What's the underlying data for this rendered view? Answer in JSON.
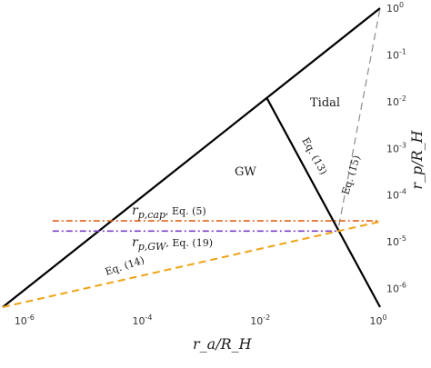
{
  "chart_data": {
    "type": "line",
    "title": "",
    "xlabel": "r_a/R_H",
    "ylabel": "r_p/R_H",
    "xscale": "log",
    "yscale": "log",
    "xlim": [
      4e-07,
      1
    ],
    "ylim": [
      4e-07,
      1
    ],
    "x_ticks": [
      {
        "value": 1e-06,
        "base": "10",
        "exp": "-6"
      },
      {
        "value": 0.0001,
        "base": "10",
        "exp": "-4"
      },
      {
        "value": 0.01,
        "base": "10",
        "exp": "-2"
      },
      {
        "value": 1,
        "base": "10",
        "exp": "0"
      }
    ],
    "y_ticks": [
      {
        "value": 1e-06,
        "base": "10",
        "exp": "-6"
      },
      {
        "value": 1e-05,
        "base": "10",
        "exp": "-5"
      },
      {
        "value": 0.0001,
        "base": "10",
        "exp": "-4"
      },
      {
        "value": 0.001,
        "base": "10",
        "exp": "-3"
      },
      {
        "value": 0.01,
        "base": "10",
        "exp": "-2"
      },
      {
        "value": 0.1,
        "base": "10",
        "exp": "-1"
      },
      {
        "value": 1,
        "base": "10",
        "exp": "0"
      }
    ],
    "regions": [
      "GW",
      "Tidal"
    ],
    "series": [
      {
        "style": "solid",
        "color": "#000000",
        "x": [
          4e-07,
          1
        ],
        "y": [
          4e-07,
          1
        ]
      },
      {
        "style": "solid",
        "color": "#000000",
        "x": [
          0.012,
          1
        ],
        "y": [
          0.012,
          4e-07
        ]
      },
      {
        "name": "Eq. (14)",
        "style": "dashed",
        "color": "#f0a418",
        "x": [
          4e-07,
          1
        ],
        "y": [
          4e-07,
          2.7e-05
        ]
      },
      {
        "name": "Eq. (15)",
        "style": "dashed",
        "color": "#8c8c8c",
        "x": [
          0.2,
          1
        ],
        "y": [
          2.2e-05,
          1
        ]
      },
      {
        "name": "Eq. (5)",
        "style": "dashdot",
        "color": "#e0601a",
        "x": [
          2.8e-06,
          1
        ],
        "y": [
          2.8e-05,
          2.8e-05
        ]
      },
      {
        "name": "Eq. (19)",
        "style": "dashdot",
        "color": "#7a3fc8",
        "x": [
          2.8e-06,
          0.2
        ],
        "y": [
          1.7e-05,
          1.7e-05
        ]
      }
    ],
    "annotations": {
      "eq13": "Eq. (13)",
      "eq14": "Eq. (14)",
      "eq15": "Eq. (15)",
      "rpcap_sym": "r",
      "rpcap_sub": "p,cap",
      "rpcap_eq": "Eq. (5)",
      "rpgw_sym": "r",
      "rpgw_sub": "p,GW",
      "rpgw_eq": "Eq. (19)"
    }
  }
}
